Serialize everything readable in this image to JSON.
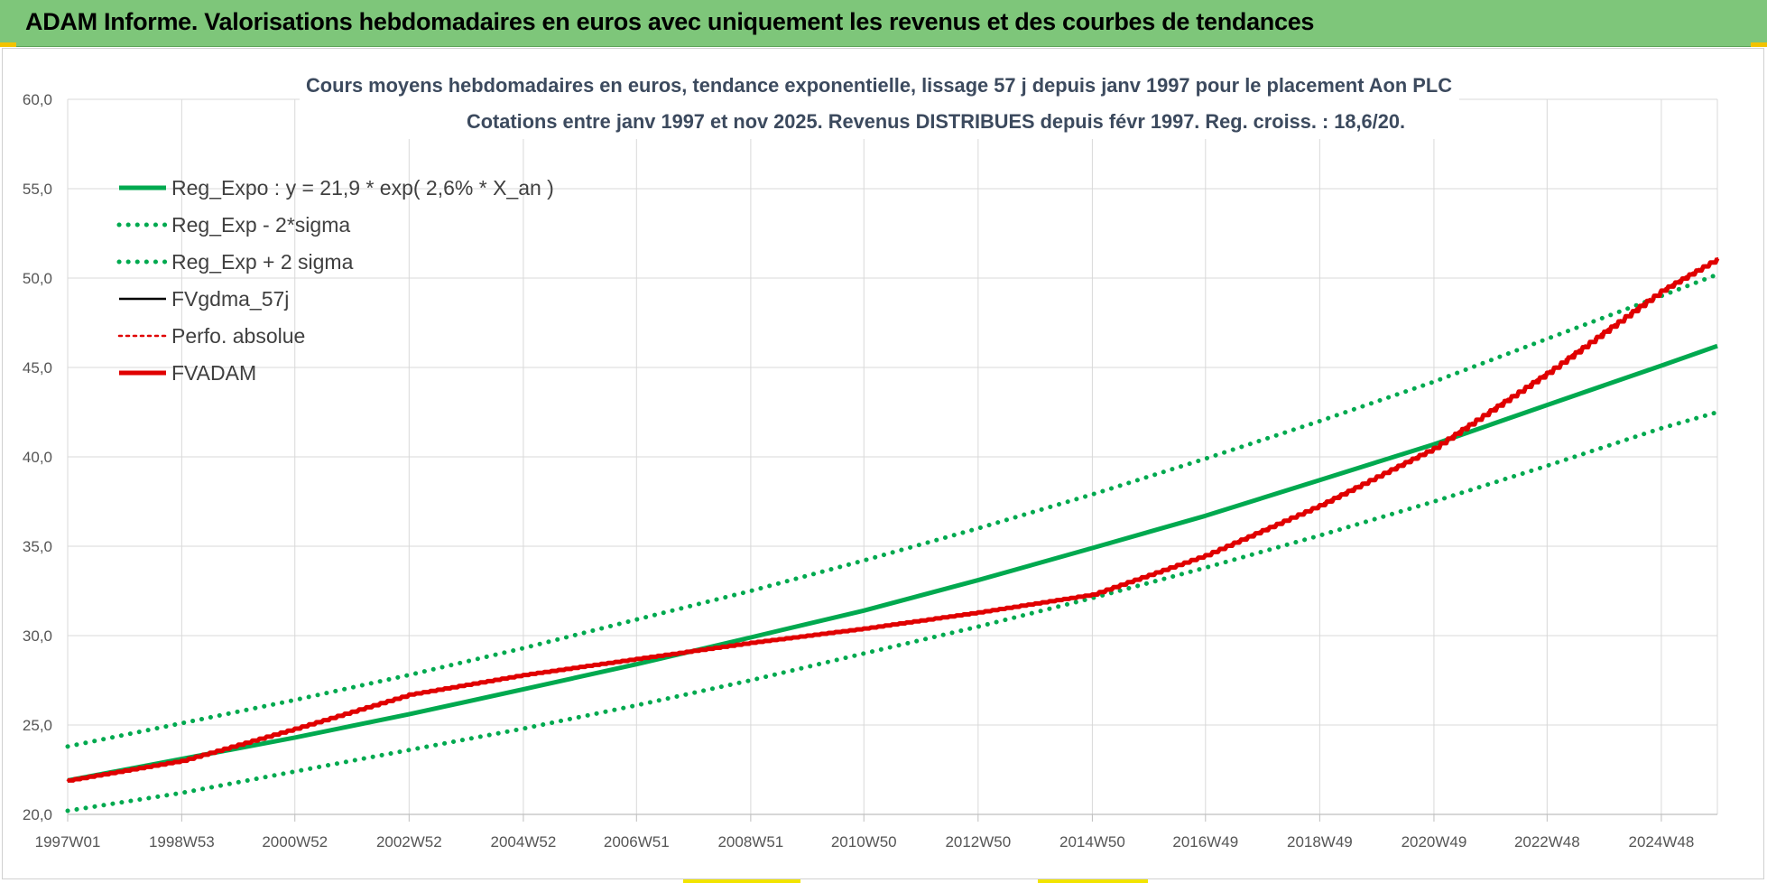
{
  "banner": {
    "title": "ADAM Informe. Valorisations hebdomadaires en euros avec uniquement les revenus et des courbes de tendances"
  },
  "colors": {
    "banner_bg": "#7ec67a",
    "green_series": "#00a94f",
    "red_series": "#e00000",
    "black_series": "#000000"
  },
  "chart_data": {
    "type": "line",
    "title": "Cours moyens hebdomadaires en euros, tendance exponentielle, lissage 57 j depuis janv 1997 pour le placement Aon PLC",
    "subtitle": "Cotations entre janv 1997 et nov 2025. Revenus DISTRIBUES depuis févr 1997. Reg. croiss. : 18,6/20.",
    "xlabel": "",
    "ylabel": "",
    "ylim": [
      20,
      60
    ],
    "y_ticks": [
      "20,0",
      "25,0",
      "30,0",
      "35,0",
      "40,0",
      "45,0",
      "50,0",
      "55,0",
      "60,0"
    ],
    "x_range": [
      "1997W01",
      "2025W47"
    ],
    "x_ticks": [
      "1997W01",
      "1998W53",
      "2000W52",
      "2002W52",
      "2004W52",
      "2006W51",
      "2008W51",
      "2010W50",
      "2012W50",
      "2014W50",
      "2016W49",
      "2018W49",
      "2020W49",
      "2022W48",
      "2024W48"
    ],
    "grid": true,
    "legend_position": "top-left",
    "series": [
      {
        "name": "Reg_Expo : y = 21,9 * exp( 2,6% *  X_an )",
        "style": "solid",
        "color": "#00a94f",
        "x": [
          "1997W01",
          "1998W53",
          "2000W52",
          "2002W52",
          "2004W52",
          "2006W51",
          "2008W51",
          "2010W50",
          "2012W50",
          "2014W50",
          "2016W49",
          "2018W49",
          "2020W49",
          "2022W48",
          "2024W48",
          "2025W47"
        ],
        "values": [
          21.9,
          23.1,
          24.3,
          25.6,
          27.0,
          28.4,
          29.9,
          31.4,
          33.1,
          34.9,
          36.7,
          38.7,
          40.7,
          42.9,
          45.1,
          46.2
        ]
      },
      {
        "name": "Reg_Exp - 2*sigma",
        "style": "dotted",
        "color": "#00a94f",
        "x": [
          "1997W01",
          "1998W53",
          "2000W52",
          "2002W52",
          "2004W52",
          "2006W51",
          "2008W51",
          "2010W50",
          "2012W50",
          "2014W50",
          "2016W49",
          "2018W49",
          "2020W49",
          "2022W48",
          "2024W48",
          "2025W47"
        ],
        "values": [
          20.2,
          21.2,
          22.4,
          23.6,
          24.8,
          26.1,
          27.5,
          29.0,
          30.5,
          32.1,
          33.8,
          35.6,
          37.5,
          39.5,
          41.6,
          42.5
        ]
      },
      {
        "name": "Reg_Exp + 2 sigma",
        "style": "dotted",
        "color": "#00a94f",
        "x": [
          "1997W01",
          "1998W53",
          "2000W52",
          "2002W52",
          "2004W52",
          "2006W51",
          "2008W51",
          "2010W50",
          "2012W50",
          "2014W50",
          "2016W49",
          "2018W49",
          "2020W49",
          "2022W48",
          "2024W48",
          "2025W47"
        ],
        "values": [
          23.8,
          25.1,
          26.4,
          27.8,
          29.3,
          30.9,
          32.5,
          34.2,
          36.0,
          37.9,
          39.9,
          42.0,
          44.2,
          46.6,
          49.0,
          50.2
        ]
      },
      {
        "name": "FVgdma_57j",
        "style": "solid-thin",
        "color": "#000000",
        "x": [
          "1997W01",
          "1998W53",
          "2000W52",
          "2002W52",
          "2004W52",
          "2006W51",
          "2008W51",
          "2010W50",
          "2012W50",
          "2014W50",
          "2016W49",
          "2018W49",
          "2020W49",
          "2022W48",
          "2024W48",
          "2025W47"
        ],
        "values": [
          21.9,
          23.0,
          24.8,
          26.7,
          27.8,
          28.7,
          29.6,
          30.4,
          31.3,
          32.3,
          34.5,
          37.3,
          40.5,
          44.7,
          49.3,
          51.1
        ]
      },
      {
        "name": "Perfo. absolue",
        "style": "dotted",
        "color": "#e00000",
        "x": [
          "1997W01",
          "1998W53",
          "2000W52",
          "2002W52",
          "2004W52",
          "2006W51",
          "2008W51",
          "2010W50",
          "2012W50",
          "2014W50",
          "2016W49",
          "2018W49",
          "2020W49",
          "2022W48",
          "2024W48",
          "2025W47"
        ],
        "values": [
          21.9,
          23.0,
          24.8,
          26.7,
          27.8,
          28.7,
          29.6,
          30.4,
          31.3,
          32.3,
          34.5,
          37.3,
          40.5,
          44.7,
          49.3,
          51.1
        ]
      },
      {
        "name": "FVADAM",
        "style": "solid-thick",
        "color": "#e00000",
        "x": [
          "1997W01",
          "1998W53",
          "2000W52",
          "2002W52",
          "2004W52",
          "2006W51",
          "2008W51",
          "2010W50",
          "2012W50",
          "2014W50",
          "2016W49",
          "2018W49",
          "2020W49",
          "2022W48",
          "2024W48",
          "2025W47"
        ],
        "values": [
          21.9,
          23.0,
          24.8,
          26.7,
          27.8,
          28.7,
          29.6,
          30.4,
          31.3,
          32.3,
          34.5,
          37.3,
          40.5,
          44.7,
          49.3,
          51.1
        ]
      }
    ]
  }
}
